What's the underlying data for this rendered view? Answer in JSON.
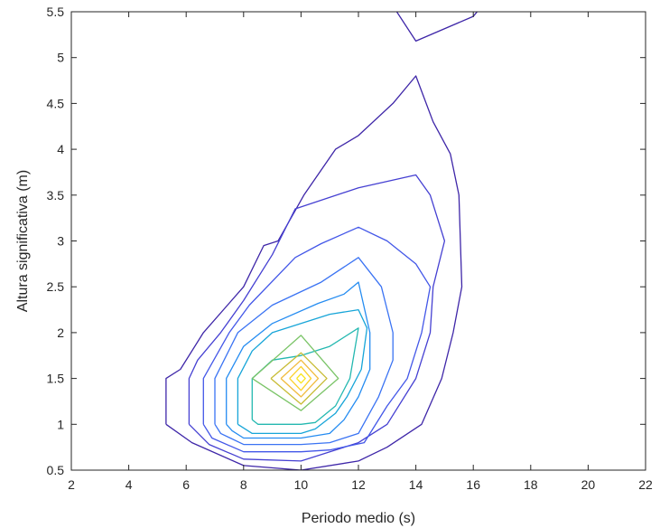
{
  "chart_data": {
    "type": "contour",
    "title": "",
    "xlabel": "Periodo medio (s)",
    "ylabel": "Altura significativa (m)",
    "xlim": [
      2,
      22
    ],
    "ylim": [
      0.5,
      5.5
    ],
    "x_ticks": [
      "2",
      "4",
      "6",
      "8",
      "10",
      "12",
      "14",
      "16",
      "18",
      "20",
      "22"
    ],
    "y_ticks": [
      "0.5",
      "1",
      "1.5",
      "2",
      "2.5",
      "3",
      "3.5",
      "4",
      "4.5",
      "5",
      "5.5"
    ],
    "grid": false,
    "box": true,
    "contours": [
      {
        "level": 1,
        "color": "#3e26a8",
        "points": [
          [
            5.3,
            1.0
          ],
          [
            5.3,
            1.5
          ],
          [
            5.8,
            1.6
          ],
          [
            6.6,
            2.0
          ],
          [
            8.0,
            2.5
          ],
          [
            8.7,
            2.95
          ],
          [
            9.2,
            3.0
          ],
          [
            10.1,
            3.5
          ],
          [
            11.2,
            4.0
          ],
          [
            12.0,
            4.15
          ],
          [
            13.2,
            4.5
          ],
          [
            14.0,
            4.8
          ],
          [
            14.6,
            4.3
          ],
          [
            15.2,
            3.95
          ],
          [
            15.5,
            3.5
          ],
          [
            15.6,
            2.5
          ],
          [
            15.3,
            2.0
          ],
          [
            14.9,
            1.5
          ],
          [
            14.2,
            1.0
          ],
          [
            13.0,
            0.75
          ],
          [
            12.0,
            0.6
          ],
          [
            10.0,
            0.5
          ],
          [
            8.0,
            0.55
          ],
          [
            6.2,
            0.8
          ],
          [
            5.3,
            1.0
          ]
        ]
      },
      {
        "level": 1,
        "color": "#3e26a8",
        "points": [
          [
            12.5,
            5.9
          ],
          [
            14.0,
            5.18
          ],
          [
            16.0,
            5.45
          ],
          [
            17.2,
            5.9
          ]
        ]
      },
      {
        "level": 2,
        "color": "#4540d2",
        "points": [
          [
            6.1,
            1.0
          ],
          [
            6.1,
            1.5
          ],
          [
            6.4,
            1.7
          ],
          [
            7.2,
            2.0
          ],
          [
            8.0,
            2.35
          ],
          [
            9.0,
            2.85
          ],
          [
            9.8,
            3.35
          ],
          [
            12.0,
            3.58
          ],
          [
            14.0,
            3.72
          ],
          [
            14.5,
            3.5
          ],
          [
            15.0,
            3.0
          ],
          [
            14.6,
            2.5
          ],
          [
            14.5,
            2.0
          ],
          [
            14.0,
            1.5
          ],
          [
            13.0,
            1.0
          ],
          [
            12.0,
            0.8
          ],
          [
            10.0,
            0.6
          ],
          [
            8.0,
            0.62
          ],
          [
            6.8,
            0.78
          ],
          [
            6.1,
            1.0
          ]
        ]
      },
      {
        "level": 3,
        "color": "#4357e8",
        "points": [
          [
            6.6,
            1.0
          ],
          [
            6.6,
            1.5
          ],
          [
            7.5,
            2.0
          ],
          [
            8.2,
            2.3
          ],
          [
            9.8,
            2.82
          ],
          [
            10.7,
            2.97
          ],
          [
            12.0,
            3.15
          ],
          [
            13.0,
            3.0
          ],
          [
            14.0,
            2.75
          ],
          [
            14.5,
            2.5
          ],
          [
            14.2,
            2.0
          ],
          [
            13.7,
            1.5
          ],
          [
            13.0,
            1.2
          ],
          [
            12.2,
            0.8
          ],
          [
            11.0,
            0.72
          ],
          [
            10.0,
            0.7
          ],
          [
            8.0,
            0.7
          ],
          [
            6.9,
            0.85
          ],
          [
            6.6,
            1.0
          ]
        ]
      },
      {
        "level": 4,
        "color": "#3a73f3",
        "points": [
          [
            7.0,
            1.0
          ],
          [
            7.0,
            1.5
          ],
          [
            7.8,
            2.0
          ],
          [
            9.0,
            2.3
          ],
          [
            10.7,
            2.55
          ],
          [
            12.0,
            2.82
          ],
          [
            12.8,
            2.5
          ],
          [
            13.2,
            2.0
          ],
          [
            13.2,
            1.7
          ],
          [
            12.7,
            1.3
          ],
          [
            12.0,
            0.9
          ],
          [
            11.0,
            0.8
          ],
          [
            10.0,
            0.78
          ],
          [
            8.0,
            0.78
          ],
          [
            7.2,
            0.9
          ],
          [
            7.0,
            1.0
          ]
        ]
      },
      {
        "level": 5,
        "color": "#258cf1",
        "points": [
          [
            7.4,
            1.0
          ],
          [
            7.4,
            1.5
          ],
          [
            8.0,
            1.85
          ],
          [
            9.0,
            2.1
          ],
          [
            10.6,
            2.32
          ],
          [
            11.5,
            2.42
          ],
          [
            12.0,
            2.55
          ],
          [
            12.4,
            2.0
          ],
          [
            12.4,
            1.6
          ],
          [
            12.0,
            1.3
          ],
          [
            11.5,
            1.05
          ],
          [
            11.0,
            0.9
          ],
          [
            10.0,
            0.85
          ],
          [
            8.0,
            0.85
          ],
          [
            7.6,
            0.93
          ],
          [
            7.4,
            1.0
          ]
        ]
      },
      {
        "level": 6,
        "color": "#17a5d8",
        "points": [
          [
            7.8,
            1.0
          ],
          [
            7.8,
            1.5
          ],
          [
            8.3,
            1.8
          ],
          [
            9.0,
            2.0
          ],
          [
            10.0,
            2.1
          ],
          [
            11.0,
            2.2
          ],
          [
            12.0,
            2.25
          ],
          [
            12.3,
            2.05
          ],
          [
            12.1,
            1.6
          ],
          [
            11.6,
            1.3
          ],
          [
            11.2,
            1.12
          ],
          [
            10.5,
            0.95
          ],
          [
            10.0,
            0.9
          ],
          [
            8.3,
            0.9
          ],
          [
            7.8,
            1.0
          ]
        ]
      },
      {
        "level": 7,
        "color": "#24b8b0",
        "points": [
          [
            8.3,
            1.05
          ],
          [
            8.3,
            1.5
          ],
          [
            9.0,
            1.7
          ],
          [
            10.0,
            1.75
          ],
          [
            11.0,
            1.85
          ],
          [
            12.0,
            2.05
          ],
          [
            11.7,
            1.5
          ],
          [
            11.2,
            1.2
          ],
          [
            10.5,
            1.02
          ],
          [
            10.0,
            1.0
          ],
          [
            8.5,
            1.0
          ],
          [
            8.3,
            1.05
          ]
        ]
      },
      {
        "level": 8,
        "color": "#7ac467",
        "points": [
          [
            8.3,
            1.5
          ],
          [
            10.0,
            1.97
          ],
          [
            11.3,
            1.5
          ],
          [
            10.0,
            1.15
          ],
          [
            8.3,
            1.5
          ]
        ]
      },
      {
        "level": 9,
        "color": "#c8bc35",
        "points": [
          [
            8.95,
            1.5
          ],
          [
            10.0,
            1.78
          ],
          [
            10.9,
            1.5
          ],
          [
            10.0,
            1.22
          ],
          [
            8.95,
            1.5
          ]
        ]
      },
      {
        "level": 10,
        "color": "#f1bb3c",
        "points": [
          [
            9.3,
            1.5
          ],
          [
            10.0,
            1.7
          ],
          [
            10.6,
            1.5
          ],
          [
            10.0,
            1.3
          ],
          [
            9.3,
            1.5
          ]
        ]
      },
      {
        "level": 11,
        "color": "#fbd129",
        "points": [
          [
            9.6,
            1.5
          ],
          [
            10.0,
            1.63
          ],
          [
            10.35,
            1.5
          ],
          [
            10.0,
            1.37
          ],
          [
            9.6,
            1.5
          ]
        ]
      },
      {
        "level": 12,
        "color": "#f9e51c",
        "points": [
          [
            9.85,
            1.5
          ],
          [
            10.0,
            1.55
          ],
          [
            10.15,
            1.5
          ],
          [
            10.0,
            1.45
          ],
          [
            9.85,
            1.5
          ]
        ]
      }
    ]
  }
}
